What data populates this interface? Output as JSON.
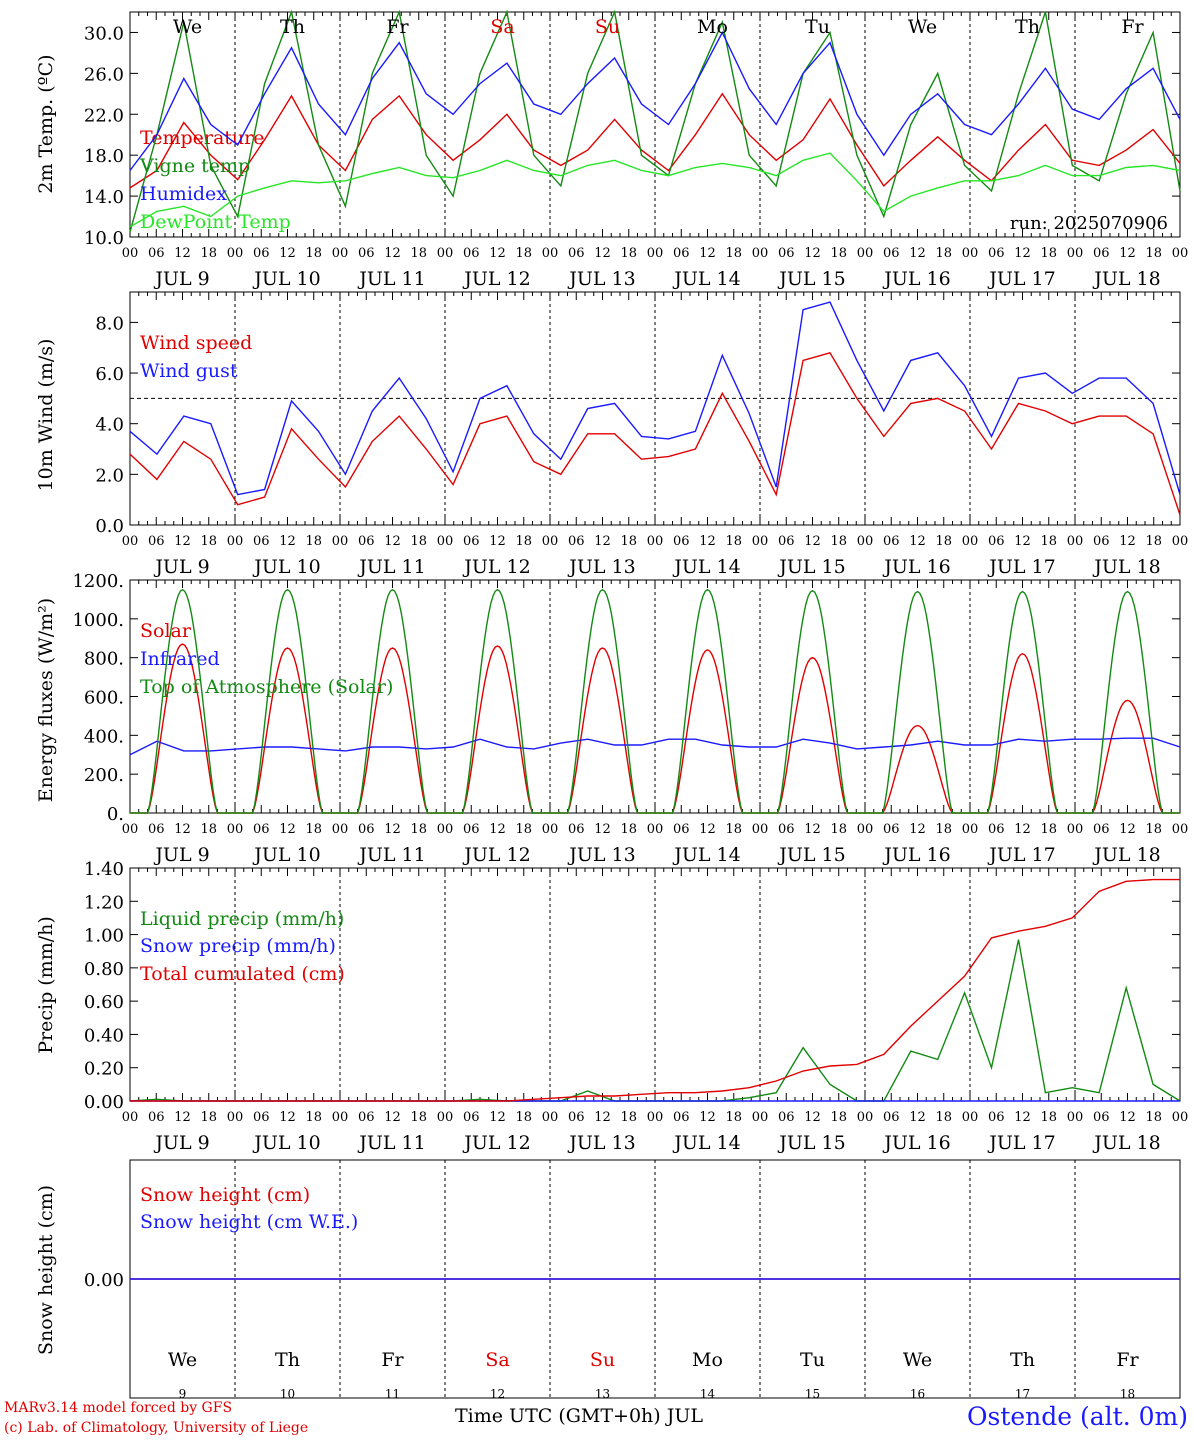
{
  "footer": {
    "model_line": "MARv3.14 model forced by GFS",
    "lab_line": "(c) Lab. of Climatology, University of Liege",
    "xaxis_title": "Time UTC (GMT+0h) JUL",
    "station": "Ostende (alt. 0m)"
  },
  "colors": {
    "temperature": "#e00000",
    "vigne": "#138a13",
    "humidex": "#1a1aff",
    "dewpoint": "#26e626",
    "weekend_label": "#e00000",
    "text": "#000000"
  },
  "days": {
    "names": [
      "We",
      "Th",
      "Fr",
      "Sa",
      "Su",
      "Mo",
      "Tu",
      "We",
      "Th",
      "Fr"
    ],
    "weekend": [
      false,
      false,
      false,
      true,
      true,
      false,
      false,
      false,
      false,
      false
    ],
    "dates": [
      "JUL  9",
      "JUL 10",
      "JUL 11",
      "JUL 12",
      "JUL 13",
      "JUL 14",
      "JUL 15",
      "JUL 16",
      "JUL 17",
      "JUL 18"
    ],
    "numbers": [
      "9",
      "10",
      "11",
      "12",
      "13",
      "14",
      "15",
      "16",
      "17",
      "18"
    ],
    "hour_ticks": [
      "00",
      "06",
      "12",
      "18"
    ],
    "end_tick": "00"
  },
  "chart_data": [
    {
      "type": "line",
      "ylabel": "2m Temp. (ºC)",
      "ylim": [
        10,
        32
      ],
      "yticks": [
        "10.0",
        "14.0",
        "18.0",
        "22.0",
        "26.0",
        "30.0"
      ],
      "ytick_values": [
        10,
        14,
        18,
        22,
        26,
        30
      ],
      "run_label": "run: 2025070906",
      "x_unit": "hours since 2025-07-09 00 UTC, 6-hourly",
      "series": [
        {
          "name": "Temperature",
          "color": "#e00000",
          "values": [
            14.8,
            16.5,
            21.2,
            18.0,
            15.6,
            19.5,
            23.8,
            19.0,
            16.5,
            21.5,
            23.8,
            20.0,
            17.5,
            19.5,
            22.0,
            18.5,
            17.0,
            18.5,
            21.5,
            18.5,
            16.5,
            20.0,
            24.0,
            20.0,
            17.5,
            19.5,
            23.5,
            19.0,
            15.0,
            17.5,
            19.8,
            17.5,
            15.5,
            18.5,
            21.0,
            17.5,
            17.0,
            18.5,
            20.5,
            17.2
          ]
        },
        {
          "name": "Vigne temp",
          "color": "#138a13",
          "values": [
            10.5,
            20.0,
            31.0,
            17.0,
            12.0,
            25.0,
            32.0,
            19.0,
            13.0,
            26.0,
            32.0,
            18.0,
            14.0,
            26.0,
            32.0,
            18.0,
            15.0,
            26.0,
            32.0,
            18.0,
            16.0,
            25.0,
            31.0,
            18.0,
            15.0,
            26.0,
            30.0,
            18.0,
            12.0,
            21.0,
            26.0,
            17.0,
            14.5,
            24.0,
            32.0,
            17.0,
            15.5,
            24.0,
            30.0,
            14.5
          ]
        },
        {
          "name": "Humidex",
          "color": "#1a1aff",
          "values": [
            16.5,
            20.0,
            25.5,
            21.0,
            19.0,
            24.0,
            28.5,
            23.0,
            20.0,
            25.5,
            29.0,
            24.0,
            22.0,
            25.0,
            27.0,
            23.0,
            22.0,
            25.0,
            27.5,
            23.0,
            21.0,
            25.0,
            30.0,
            24.5,
            21.0,
            26.0,
            29.0,
            22.0,
            18.0,
            22.0,
            24.0,
            21.0,
            20.0,
            23.0,
            26.5,
            22.5,
            21.5,
            24.5,
            26.5,
            21.5
          ]
        },
        {
          "name": "DewPoint Temp",
          "color": "#26e626",
          "values": [
            11.0,
            12.5,
            13.0,
            12.0,
            14.0,
            14.8,
            15.5,
            15.3,
            15.5,
            16.2,
            16.8,
            16.0,
            15.8,
            16.5,
            17.5,
            16.5,
            16.0,
            17.0,
            17.5,
            16.5,
            16.0,
            16.8,
            17.2,
            16.8,
            16.0,
            17.5,
            18.2,
            15.5,
            12.5,
            14.0,
            14.8,
            15.5,
            15.5,
            16.0,
            17.0,
            16.0,
            16.0,
            16.8,
            17.0,
            16.5
          ]
        }
      ]
    },
    {
      "type": "line",
      "ylabel": "10m Wind (m/s)",
      "ylim": [
        0,
        9.2
      ],
      "yticks": [
        "0.0",
        "2.0",
        "4.0",
        "6.0",
        "8.0"
      ],
      "ytick_values": [
        0,
        2,
        4,
        6,
        8
      ],
      "reference_line": 5,
      "series": [
        {
          "name": "Wind speed",
          "color": "#e00000",
          "values": [
            2.8,
            1.8,
            3.3,
            2.6,
            0.8,
            1.1,
            3.8,
            2.6,
            1.5,
            3.3,
            4.3,
            3.0,
            1.6,
            4.0,
            4.3,
            2.5,
            2.0,
            3.6,
            3.6,
            2.6,
            2.7,
            3.0,
            5.2,
            3.3,
            1.2,
            6.5,
            6.8,
            5.0,
            3.5,
            4.8,
            5.0,
            4.5,
            3.0,
            4.8,
            4.5,
            4.0,
            4.3,
            4.3,
            3.6,
            0.4
          ]
        },
        {
          "name": "Wind gust",
          "color": "#1a1aff",
          "values": [
            3.7,
            2.8,
            4.3,
            4.0,
            1.2,
            1.4,
            4.9,
            3.7,
            2.0,
            4.5,
            5.8,
            4.2,
            2.1,
            5.0,
            5.5,
            3.6,
            2.6,
            4.6,
            4.8,
            3.5,
            3.4,
            3.7,
            6.7,
            4.4,
            1.5,
            8.5,
            8.8,
            6.5,
            4.5,
            6.5,
            6.8,
            5.5,
            3.5,
            5.8,
            6.0,
            5.2,
            5.8,
            5.8,
            4.8,
            1.2
          ]
        }
      ]
    },
    {
      "type": "line",
      "ylabel": "Energy fluxes (W/m²)",
      "ylim": [
        0,
        1200
      ],
      "yticks": [
        "0.",
        "200.",
        "400.",
        "600.",
        "800.",
        "1000.",
        "1200."
      ],
      "ytick_values": [
        0,
        200,
        400,
        600,
        800,
        1000,
        1200
      ],
      "series": [
        {
          "name": "Solar",
          "color": "#e00000",
          "day_peaks": [
            870,
            850,
            850,
            860,
            850,
            840,
            800,
            450,
            820,
            580
          ]
        },
        {
          "name": "Infrared",
          "color": "#1a1aff",
          "values": [
            300,
            370,
            320,
            320,
            330,
            340,
            340,
            330,
            320,
            340,
            340,
            330,
            340,
            380,
            340,
            330,
            360,
            380,
            350,
            350,
            380,
            380,
            350,
            340,
            340,
            380,
            360,
            330,
            340,
            350,
            370,
            350,
            350,
            380,
            370,
            380,
            380,
            385,
            385,
            340
          ]
        },
        {
          "name": "Top of Atmosphere (Solar)",
          "color": "#138a13",
          "day_peaks": [
            1150,
            1150,
            1150,
            1150,
            1150,
            1150,
            1145,
            1140,
            1140,
            1140
          ]
        }
      ]
    },
    {
      "type": "line",
      "ylabel": "Precip (mm/h)",
      "ylim": [
        0,
        1.4
      ],
      "yticks": [
        "0.00",
        "0.20",
        "0.40",
        "0.60",
        "0.80",
        "1.00",
        "1.20",
        "1.40"
      ],
      "ytick_values": [
        0,
        0.2,
        0.4,
        0.6,
        0.8,
        1.0,
        1.2,
        1.4
      ],
      "series": [
        {
          "name": "Liquid precip (mm/h)",
          "color": "#138a13",
          "values": [
            0,
            0.01,
            0,
            0,
            0,
            0,
            0,
            0,
            0,
            0,
            0,
            0,
            0,
            0.01,
            0,
            0,
            0,
            0.06,
            0,
            0,
            0,
            0,
            0,
            0.02,
            0.05,
            0.32,
            0.1,
            0,
            0,
            0.3,
            0.25,
            0.65,
            0.2,
            0.97,
            0.05,
            0.08,
            0.05,
            0.68,
            0.1,
            0
          ]
        },
        {
          "name": "Snow precip (mm/h)",
          "color": "#1a1aff",
          "values": [
            0,
            0,
            0,
            0,
            0,
            0,
            0,
            0,
            0,
            0,
            0,
            0,
            0,
            0,
            0,
            0,
            0,
            0,
            0,
            0,
            0,
            0,
            0,
            0,
            0,
            0,
            0,
            0,
            0,
            0,
            0,
            0,
            0,
            0,
            0,
            0,
            0,
            0,
            0,
            0
          ]
        },
        {
          "name": "Total cumulated (cm)",
          "color": "#e00000",
          "values": [
            0,
            0,
            0,
            0,
            0,
            0,
            0,
            0,
            0,
            0,
            0,
            0,
            0,
            0,
            0,
            0.01,
            0.02,
            0.03,
            0.03,
            0.04,
            0.05,
            0.05,
            0.06,
            0.08,
            0.12,
            0.18,
            0.21,
            0.22,
            0.28,
            0.45,
            0.6,
            0.75,
            0.98,
            1.02,
            1.05,
            1.1,
            1.26,
            1.32,
            1.33,
            1.33
          ]
        }
      ]
    },
    {
      "type": "line",
      "ylabel": "Snow height (cm)",
      "yticks": [
        "0.00"
      ],
      "series": [
        {
          "name": "Snow height (cm)",
          "color": "#e00000",
          "values": [
            0,
            0
          ]
        },
        {
          "name": "Snow height (cm W.E.)",
          "color": "#1a1aff",
          "values": [
            0,
            0
          ]
        }
      ]
    }
  ]
}
